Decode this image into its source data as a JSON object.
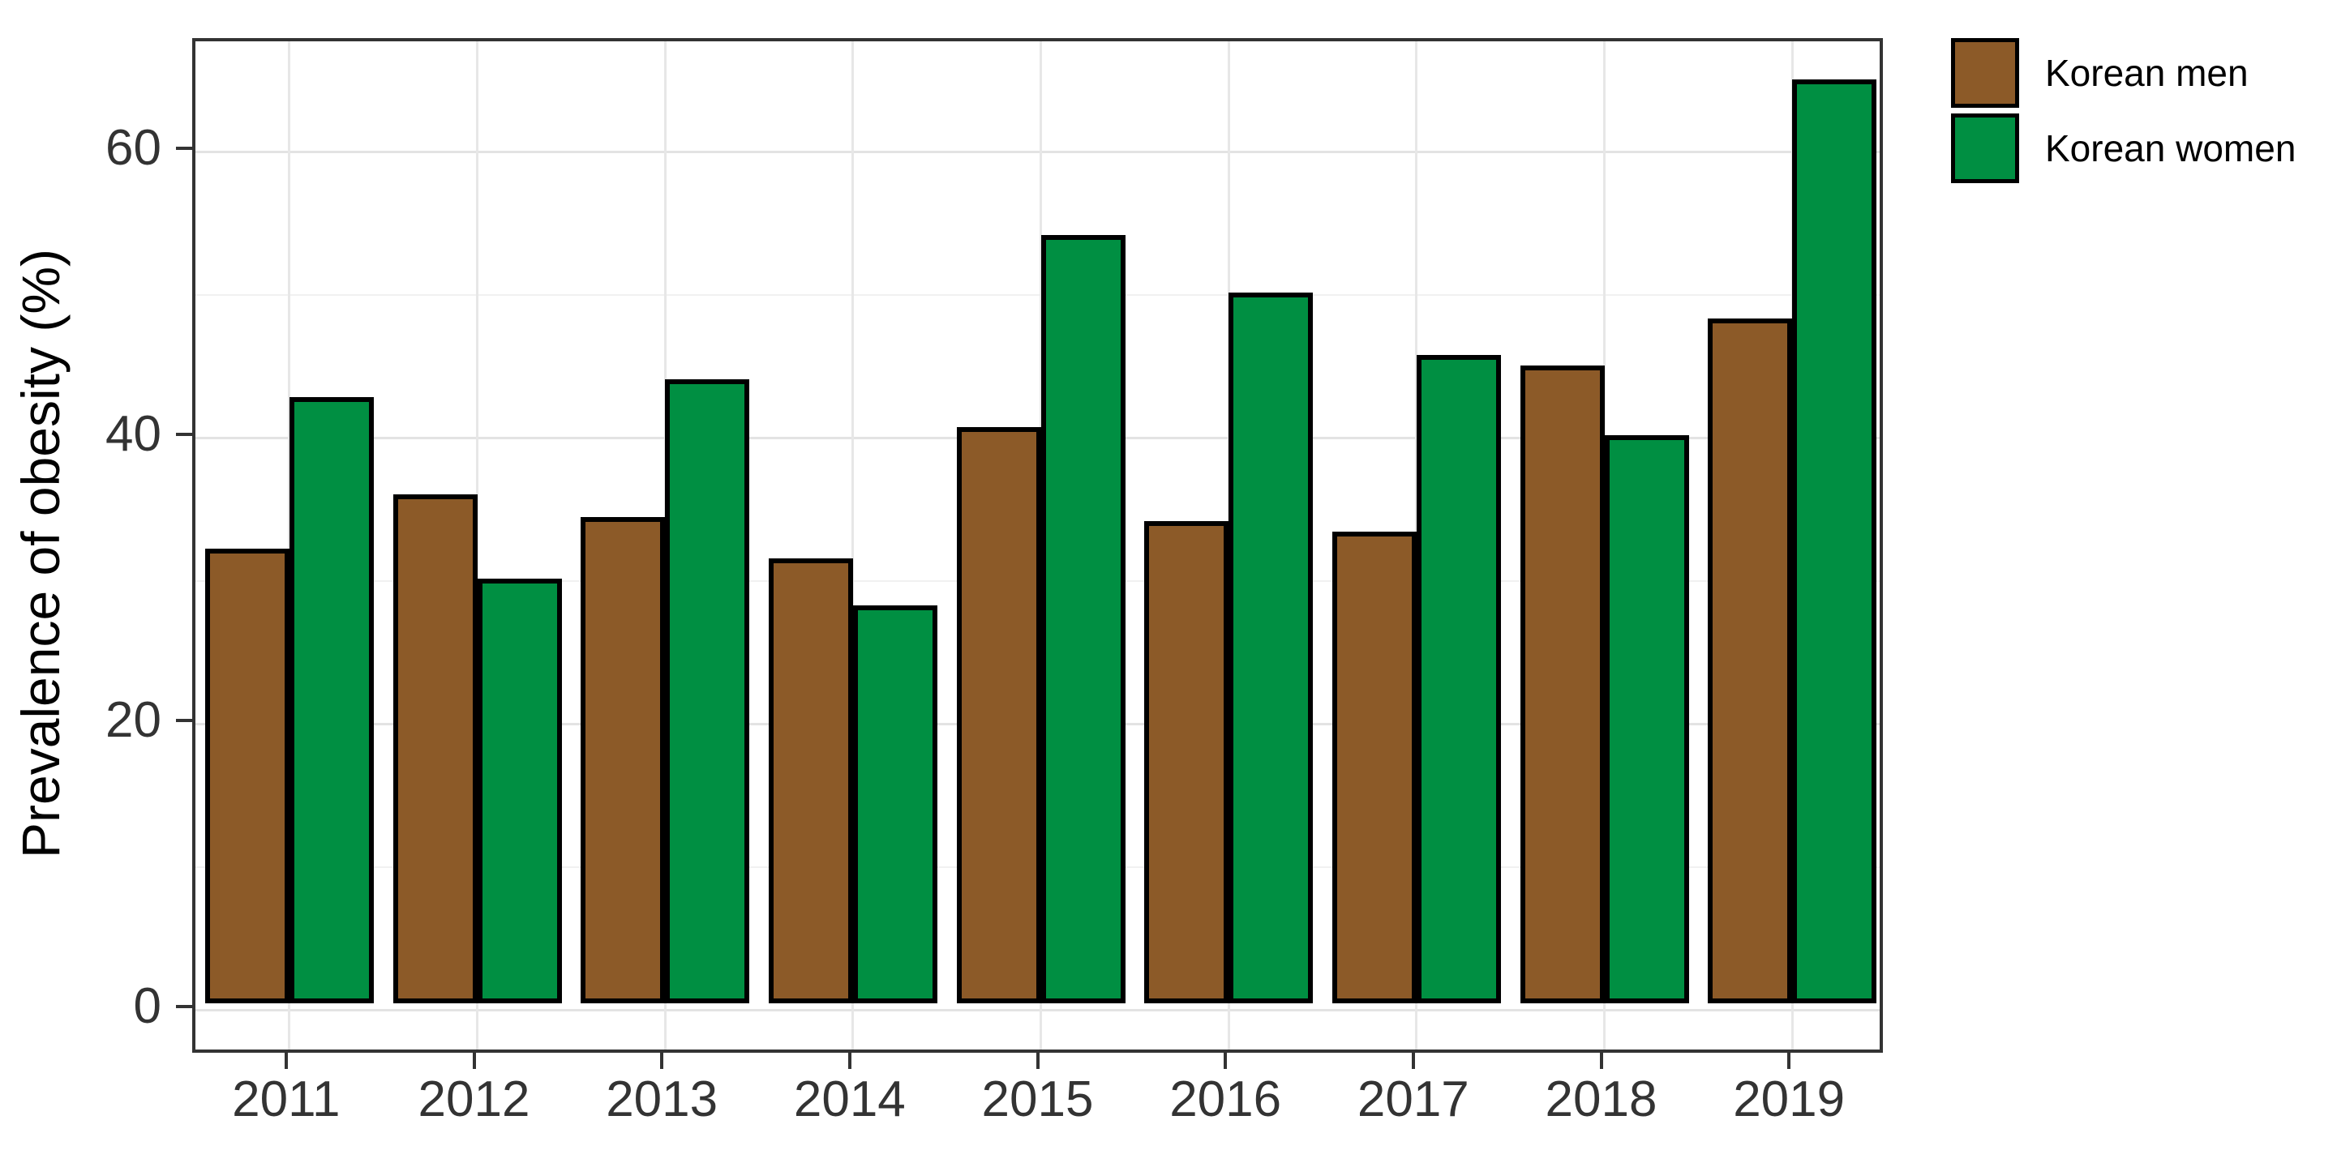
{
  "figure": {
    "background": "#ffffff"
  },
  "chart_data": {
    "type": "bar",
    "title": "",
    "xlabel": "",
    "ylabel": "Prevalence of obesity (%)",
    "categories": [
      "2011",
      "2012",
      "2013",
      "2014",
      "2015",
      "2016",
      "2017",
      "2018",
      "2019"
    ],
    "series": [
      {
        "name": "Korean men",
        "color": "#8C5A28",
        "values": [
          31.8,
          35.6,
          34.0,
          31.1,
          40.3,
          33.7,
          33.0,
          44.6,
          47.9
        ]
      },
      {
        "name": "Korean women",
        "color": "#008F42",
        "values": [
          42.4,
          29.7,
          43.6,
          27.8,
          53.7,
          49.7,
          45.3,
          39.7,
          64.6
        ]
      }
    ],
    "ylim": [
      0,
      67.7
    ],
    "yticks": [
      0,
      20,
      40,
      60
    ],
    "ytick_labels": [
      "0",
      "20",
      "40",
      "60"
    ],
    "minor_gridlines": [
      10,
      30,
      50
    ],
    "grid": true,
    "legend_position": "top-right",
    "bar_border_color": "#000000"
  },
  "style_colors": {
    "axis_text": "#333333",
    "panel_border": "#333333",
    "grid_major": "#e3e3e3",
    "grid_minor": "#f1f1f1"
  }
}
